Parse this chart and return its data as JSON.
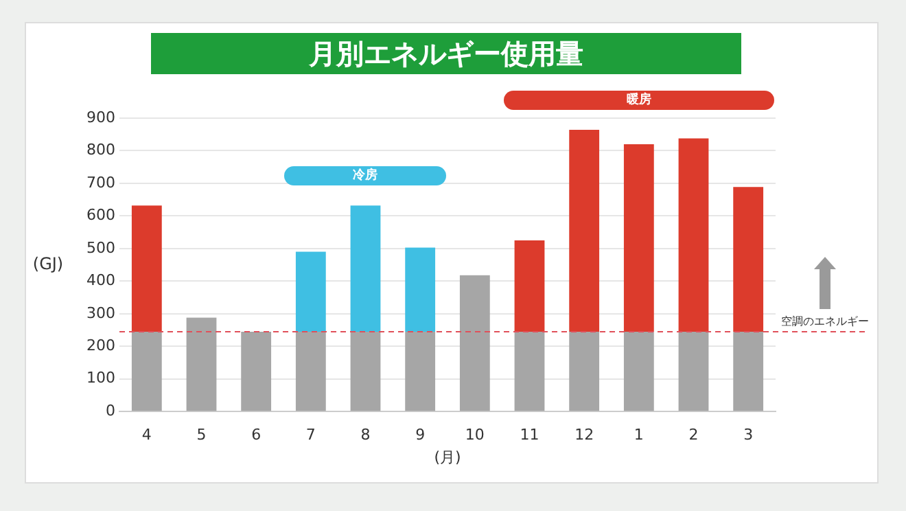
{
  "chart_data": {
    "type": "bar",
    "title": "月別エネルギー使用量",
    "xlabel": "(月)",
    "ylabel": "(GJ)",
    "categories": [
      "4",
      "5",
      "6",
      "7",
      "8",
      "9",
      "10",
      "11",
      "12",
      "1",
      "2",
      "3"
    ],
    "stacked": true,
    "series": [
      {
        "color": "#a6a6a6",
        "values": [
          245,
          288,
          245,
          245,
          245,
          245,
          418,
          245,
          245,
          245,
          245,
          245
        ]
      },
      {
        "name": "冷房",
        "color": "#3fbfe3",
        "values": [
          null,
          null,
          null,
          245,
          387,
          258,
          null,
          null,
          null,
          null,
          null,
          null
        ]
      },
      {
        "name": "暖房",
        "color": "#dc3b2c",
        "values": [
          387,
          null,
          null,
          null,
          null,
          null,
          null,
          280,
          619,
          575,
          593,
          444
        ]
      }
    ],
    "ylim": [
      0,
      900
    ],
    "yticks": [
      0,
      100,
      200,
      300,
      400,
      500,
      600,
      700,
      800,
      900
    ],
    "grid": "y",
    "legend": false,
    "ref_lines": [
      {
        "axis": "y",
        "value": 245,
        "label": "空調のエネルギー",
        "color": "#e0505a",
        "line_style": "dashed"
      }
    ]
  }
}
